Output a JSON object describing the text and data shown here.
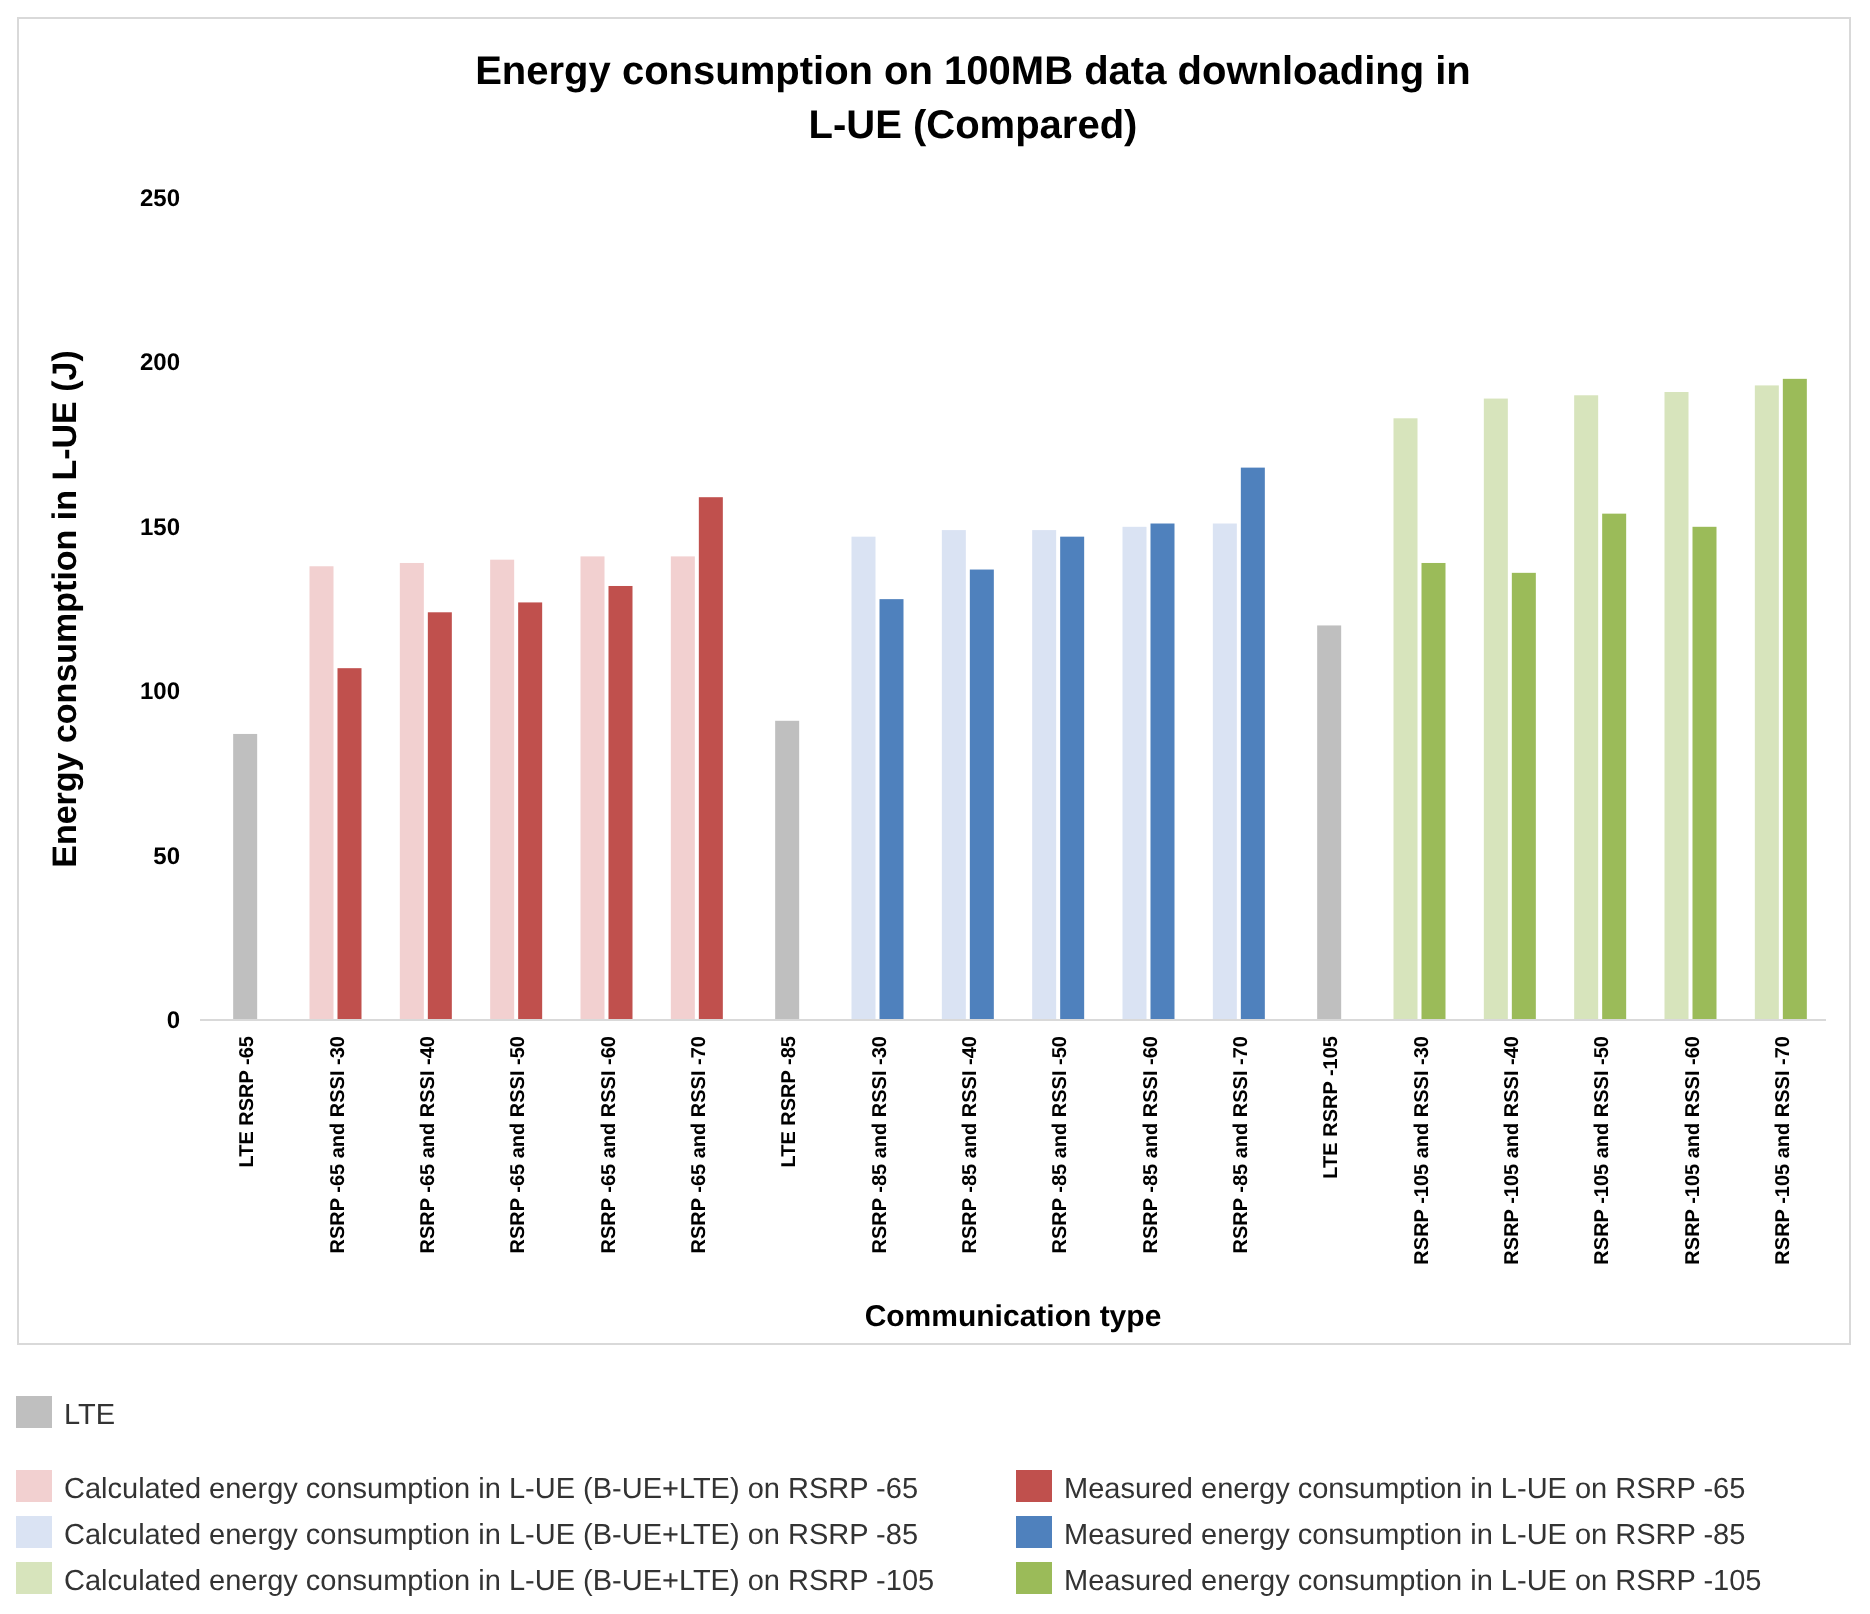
{
  "chart_data": {
    "type": "bar",
    "title": "Energy consumption on 100MB data downloading in L-UE (Compared)",
    "xlabel": "Communication type",
    "ylabel": "Energy consumption in L-UE  (J)",
    "categories": [
      "LTE RSRP -65",
      "RSRP -65 and RSSI -30",
      "RSRP -65 and RSSI -40",
      "RSRP -65 and RSSI -50",
      "RSRP -65 and RSSI -60",
      "RSRP -65 and RSSI -70",
      "LTE RSRP -85",
      "RSRP -85 and RSSI -30",
      "RSRP -85 and RSSI -40",
      "RSRP -85 and RSSI -50",
      "RSRP -85 and RSSI -60",
      "RSRP -85 and RSSI -70",
      "LTE RSRP -105",
      "RSRP -105 and RSSI -30",
      "RSRP -105 and RSSI -40",
      "RSRP -105 and RSSI -50",
      "RSRP -105 and RSSI -60",
      "RSRP -105 and RSSI -70"
    ],
    "series": [
      {
        "name": "LTE",
        "color": "#bfbfbf",
        "values": [
          87,
          null,
          null,
          null,
          null,
          null,
          91,
          null,
          null,
          null,
          null,
          null,
          120,
          null,
          null,
          null,
          null,
          null
        ]
      },
      {
        "name": "Calculated energy consumption in L-UE (B-UE+LTE) on RSRP -65",
        "color": "#f2d0d0",
        "values": [
          null,
          138,
          139,
          140,
          141,
          141,
          null,
          null,
          null,
          null,
          null,
          null,
          null,
          null,
          null,
          null,
          null,
          null
        ]
      },
      {
        "name": "Measured energy consumption in L-UE on RSRP -65",
        "color": "#c0504d",
        "values": [
          null,
          107,
          124,
          127,
          132,
          159,
          null,
          null,
          null,
          null,
          null,
          null,
          null,
          null,
          null,
          null,
          null,
          null
        ]
      },
      {
        "name": "Calculated energy consumption in L-UE (B-UE+LTE) on RSRP -85",
        "color": "#dae3f3",
        "values": [
          null,
          null,
          null,
          null,
          null,
          null,
          null,
          147,
          149,
          149,
          150,
          151,
          null,
          null,
          null,
          null,
          null,
          null
        ]
      },
      {
        "name": "Measured energy consumption in L-UE on RSRP -85",
        "color": "#4f81bd",
        "values": [
          null,
          null,
          null,
          null,
          null,
          null,
          null,
          128,
          137,
          147,
          151,
          168,
          null,
          null,
          null,
          null,
          null,
          null
        ]
      },
      {
        "name": "Calculated energy consumption in L-UE (B-UE+LTE) on RSRP -105",
        "color": "#d7e4bc",
        "values": [
          null,
          null,
          null,
          null,
          null,
          null,
          null,
          null,
          null,
          null,
          null,
          null,
          null,
          183,
          189,
          190,
          191,
          193
        ]
      },
      {
        "name": "Measured energy consumption in L-UE on RSRP -105",
        "color": "#9bbb59",
        "values": [
          null,
          null,
          null,
          null,
          null,
          null,
          null,
          null,
          null,
          null,
          null,
          null,
          null,
          139,
          136,
          154,
          150,
          195
        ]
      }
    ],
    "ylim": [
      0,
      250
    ],
    "yticks": [
      0,
      50,
      100,
      150,
      200,
      250
    ],
    "grid": false,
    "legend": "bottom"
  }
}
